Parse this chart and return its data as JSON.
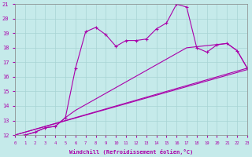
{
  "xlabel": "Windchill (Refroidissement éolien,°C)",
  "xlim": [
    0,
    23
  ],
  "ylim": [
    12,
    21
  ],
  "xticks": [
    0,
    1,
    2,
    3,
    4,
    5,
    6,
    7,
    8,
    9,
    10,
    11,
    12,
    13,
    14,
    15,
    16,
    17,
    18,
    19,
    20,
    21,
    22,
    23
  ],
  "yticks": [
    12,
    13,
    14,
    15,
    16,
    17,
    18,
    19,
    20,
    21
  ],
  "background_color": "#c5eaea",
  "line_color": "#aa00aa",
  "grid_color": "#a8d4d4",
  "lines": [
    {
      "x": [
        0,
        1,
        2,
        3,
        4,
        5,
        6,
        7,
        8,
        9,
        10,
        11,
        12,
        13,
        14,
        15,
        16,
        17,
        18,
        19,
        20,
        21,
        22,
        23
      ],
      "y": [
        11.9,
        12.0,
        12.2,
        12.5,
        12.6,
        13.2,
        16.6,
        19.1,
        19.4,
        18.9,
        18.1,
        18.5,
        18.5,
        18.6,
        19.3,
        19.7,
        21.0,
        20.8,
        18.0,
        17.7,
        18.2,
        18.3,
        17.8,
        16.6
      ],
      "marker": "+"
    },
    {
      "x": [
        0,
        1,
        2,
        3,
        4,
        5,
        6,
        17,
        21,
        22,
        23
      ],
      "y": [
        11.9,
        12.0,
        12.2,
        12.5,
        12.6,
        13.2,
        13.7,
        18.0,
        18.3,
        17.8,
        16.6
      ],
      "marker": null
    },
    {
      "x": [
        0,
        23
      ],
      "y": [
        12.0,
        16.5
      ],
      "marker": null
    },
    {
      "x": [
        0,
        23
      ],
      "y": [
        12.0,
        16.6
      ],
      "marker": null
    }
  ]
}
